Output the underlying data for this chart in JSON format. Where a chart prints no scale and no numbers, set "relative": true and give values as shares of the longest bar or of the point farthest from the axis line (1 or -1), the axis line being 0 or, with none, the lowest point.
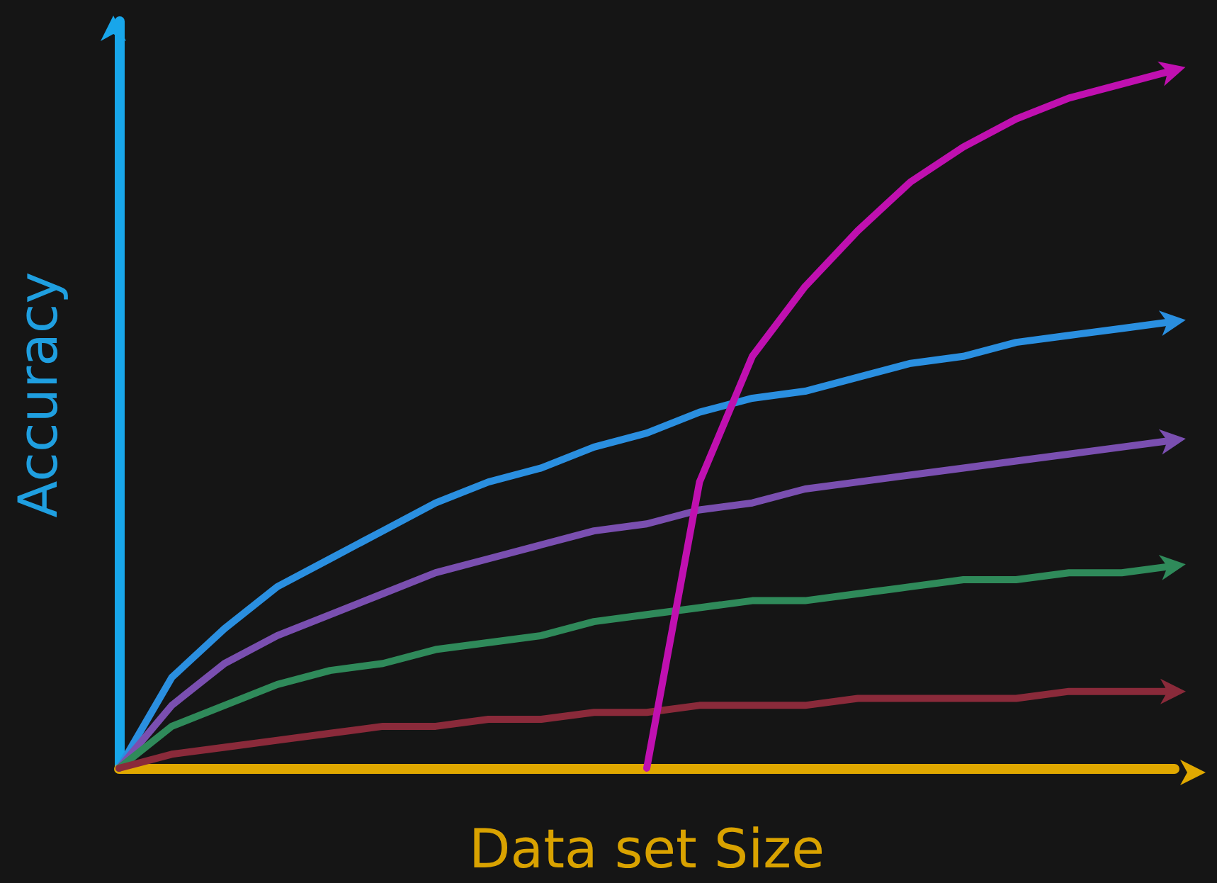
{
  "chart_data": {
    "type": "line",
    "relative": true,
    "xlabel": "Data set Size",
    "ylabel": "Accuracy",
    "categories": [
      null,
      null,
      null,
      null,
      null,
      null,
      null,
      null,
      null,
      null,
      null,
      null,
      null,
      null,
      null,
      null,
      null,
      null,
      null,
      null,
      null
    ],
    "series": [
      {
        "color": "#2a8fe0",
        "values": [
          0,
          0.13,
          0.2,
          0.26,
          0.3,
          0.34,
          0.38,
          0.41,
          0.43,
          0.46,
          0.48,
          0.51,
          0.53,
          0.54,
          0.56,
          0.58,
          0.59,
          0.61,
          0.62,
          0.63,
          0.64
        ]
      },
      {
        "color": "#7a4fb0",
        "values": [
          0,
          0.09,
          0.15,
          0.19,
          0.22,
          0.25,
          0.28,
          0.3,
          0.32,
          0.34,
          0.35,
          0.37,
          0.38,
          0.4,
          0.41,
          0.42,
          0.43,
          0.44,
          0.45,
          0.46,
          0.47
        ]
      },
      {
        "color": "#2f8a5a",
        "values": [
          0,
          0.06,
          0.09,
          0.12,
          0.14,
          0.15,
          0.17,
          0.18,
          0.19,
          0.21,
          0.22,
          0.23,
          0.24,
          0.24,
          0.25,
          0.26,
          0.27,
          0.27,
          0.28,
          0.28,
          0.29
        ]
      },
      {
        "color": "#8a2a3a",
        "values": [
          0,
          0.02,
          0.03,
          0.04,
          0.05,
          0.06,
          0.06,
          0.07,
          0.07,
          0.08,
          0.08,
          0.09,
          0.09,
          0.09,
          0.1,
          0.1,
          0.1,
          0.1,
          0.11,
          0.11,
          0.11
        ]
      },
      {
        "color": "#c010b0",
        "values": [
          null,
          null,
          null,
          null,
          null,
          null,
          null,
          null,
          null,
          null,
          0,
          0.41,
          0.59,
          0.69,
          0.77,
          0.84,
          0.89,
          0.93,
          0.96,
          0.98,
          1
        ]
      }
    ]
  }
}
